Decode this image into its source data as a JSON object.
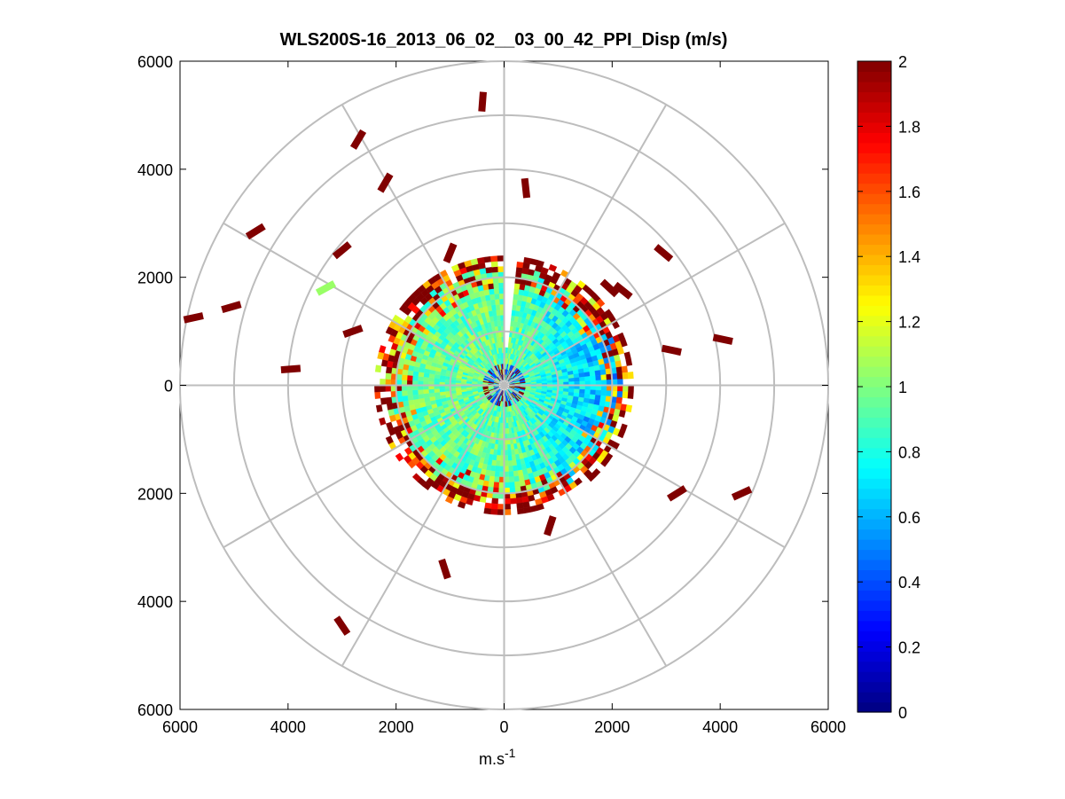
{
  "chart_data": {
    "type": "heatmap",
    "title": "WLS200S-16_2013_06_02__03_00_42_PPI_Disp (m/s)",
    "xlabel_base": "m.s",
    "xlabel_sup": "-1",
    "ylabel": "",
    "xlim": [
      -6000,
      6000
    ],
    "ylim": [
      -6000,
      6000
    ],
    "x_ticks": [
      "6000",
      "4000",
      "2000",
      "0",
      "2000",
      "4000",
      "6000"
    ],
    "x_tick_values": [
      -6000,
      -4000,
      -2000,
      0,
      2000,
      4000,
      6000
    ],
    "y_ticks": [
      "6000",
      "4000",
      "2000",
      "0",
      "2000",
      "4000",
      "6000"
    ],
    "y_tick_values": [
      6000,
      4000,
      2000,
      0,
      -2000,
      -4000,
      -6000
    ],
    "polar_grid": {
      "rings": [
        1000,
        2000,
        3000,
        4000,
        5000,
        6000
      ],
      "spokes_deg": [
        0,
        30,
        60,
        90,
        120,
        150,
        180,
        210,
        240,
        270,
        300,
        330
      ],
      "grid": true
    },
    "colorbar": {
      "min": 0,
      "max": 2,
      "ticks": [
        "0",
        "0.2",
        "0.4",
        "0.6",
        "0.8",
        "1",
        "1.2",
        "1.4",
        "1.6",
        "1.8",
        "2"
      ],
      "tick_values": [
        0,
        0.2,
        0.4,
        0.6,
        0.8,
        1,
        1.2,
        1.4,
        1.6,
        1.8,
        2
      ],
      "colormap": "jet",
      "position": "right"
    },
    "scan": {
      "description_values": "dispersion field, mostly 0.8-1.1 m/s, lower (~0.6) to the east, high (~2) at outer edge",
      "max_range_m": 2400,
      "gap_azimuth_deg": [
        0,
        5
      ],
      "east_low_value": 0.6,
      "core_value": 0.95,
      "edge_value": 2.0
    },
    "isolated_returns": [
      {
        "x": -400,
        "y": 5250,
        "v": 2
      },
      {
        "x": -2700,
        "y": 4550,
        "v": 2
      },
      {
        "x": -2200,
        "y": 3750,
        "v": 2
      },
      {
        "x": -4600,
        "y": 2850,
        "v": 2
      },
      {
        "x": -5050,
        "y": 1450,
        "v": 2
      },
      {
        "x": -5750,
        "y": 1250,
        "v": 2
      },
      {
        "x": 400,
        "y": 3650,
        "v": 2
      },
      {
        "x": -3000,
        "y": 2500,
        "v": 2
      },
      {
        "x": -3300,
        "y": 1800,
        "v": 1.05
      },
      {
        "x": -1000,
        "y": 2450,
        "v": 2
      },
      {
        "x": -2800,
        "y": 1000,
        "v": 2
      },
      {
        "x": -3950,
        "y": 300,
        "v": 2
      },
      {
        "x": 2950,
        "y": 2450,
        "v": 2
      },
      {
        "x": 1950,
        "y": 1800,
        "v": 2
      },
      {
        "x": 2200,
        "y": 1750,
        "v": 2
      },
      {
        "x": 3100,
        "y": 650,
        "v": 2
      },
      {
        "x": 4050,
        "y": 850,
        "v": 2
      },
      {
        "x": 3200,
        "y": -2000,
        "v": 2
      },
      {
        "x": 4400,
        "y": -2000,
        "v": 2
      },
      {
        "x": 850,
        "y": -2600,
        "v": 2
      },
      {
        "x": -1100,
        "y": -3400,
        "v": 2
      },
      {
        "x": -3000,
        "y": -4450,
        "v": 2
      }
    ]
  }
}
